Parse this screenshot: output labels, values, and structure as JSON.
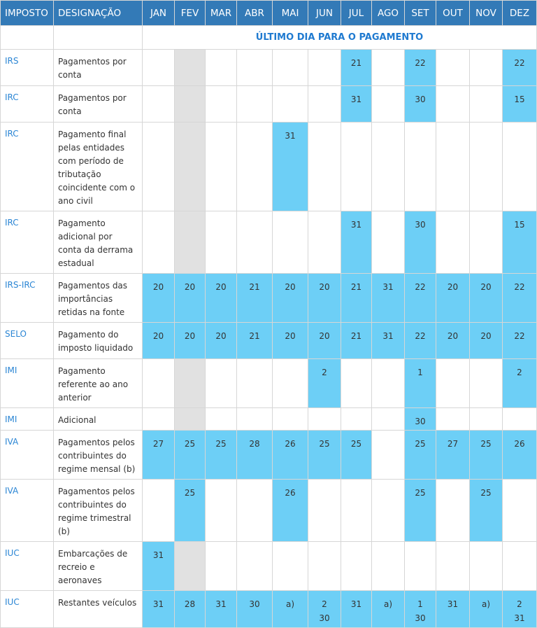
{
  "header": {
    "imposto": "IMPOSTO",
    "designacao": "DESIGNAÇÃO",
    "months": [
      "JAN",
      "FEV",
      "MAR",
      "ABR",
      "MAI",
      "JUN",
      "JUL",
      "AGO",
      "SET",
      "OUT",
      "NOV",
      "DEZ"
    ]
  },
  "subheader": "ÚLTIMO DIA PARA O PAGAMENTO",
  "colors": {
    "header_bg": "#337ab7",
    "highlight": "#6dcff6",
    "not_applicable": "#e1e1e1",
    "tax_link": "#2a85d4"
  },
  "rows": [
    {
      "imposto": "IRS",
      "designacao": "Pagamentos por conta",
      "gray": [
        1
      ],
      "cells": [
        "",
        "",
        "",
        "",
        "",
        "",
        "21",
        "",
        "22",
        "",
        "",
        "22"
      ]
    },
    {
      "imposto": "IRC",
      "designacao": "Pagamentos por conta",
      "gray": [
        1
      ],
      "cells": [
        "",
        "",
        "",
        "",
        "",
        "",
        "31",
        "",
        "30",
        "",
        "",
        "15"
      ]
    },
    {
      "imposto": "IRC",
      "designacao": "Pagamento final pelas entidades com período de tributação coincidente com o ano civil",
      "gray": [
        1
      ],
      "cells": [
        "",
        "",
        "",
        "",
        "31",
        "",
        "",
        "",
        "",
        "",
        "",
        ""
      ]
    },
    {
      "imposto": "IRC",
      "designacao": "Pagamento adicional por conta da derrama estadual",
      "gray": [
        1
      ],
      "cells": [
        "",
        "",
        "",
        "",
        "",
        "",
        "31",
        "",
        "30",
        "",
        "",
        "15"
      ]
    },
    {
      "imposto": "IRS-IRC",
      "designacao": "Pagamentos das importâncias retidas na fonte",
      "gray": [],
      "cells": [
        "20",
        "20",
        "20",
        "21",
        "20",
        "20",
        "21",
        "31",
        "22",
        "20",
        "20",
        "22"
      ]
    },
    {
      "imposto": "SELO",
      "designacao": "Pagamento do imposto liquidado",
      "gray": [],
      "cells": [
        "20",
        "20",
        "20",
        "21",
        "20",
        "20",
        "21",
        "31",
        "22",
        "20",
        "20",
        "22"
      ]
    },
    {
      "imposto": "IMI",
      "designacao": "Pagamento referente ao ano anterior",
      "gray": [
        1
      ],
      "cells": [
        "",
        "",
        "",
        "",
        "",
        "2",
        "",
        "",
        "1",
        "",
        "",
        "2"
      ]
    },
    {
      "imposto": "IMI",
      "designacao": "Adicional",
      "gray": [
        1
      ],
      "cells": [
        "",
        "",
        "",
        "",
        "",
        "",
        "",
        "",
        "30",
        "",
        "",
        ""
      ]
    },
    {
      "imposto": "IVA",
      "designacao": "Pagamentos pelos contribuintes do regime mensal (b)",
      "gray": [],
      "cells": [
        "27",
        "25",
        "25",
        "28",
        "26",
        "25",
        "25",
        "",
        "25",
        "27",
        "25",
        "26"
      ]
    },
    {
      "imposto": "IVA",
      "designacao": "Pagamentos pelos contribuintes do regime trimestral (b)",
      "gray": [],
      "cells": [
        "",
        "25",
        "",
        "",
        "26",
        "",
        "",
        "",
        "25",
        "",
        "25",
        ""
      ]
    },
    {
      "imposto": "IUC",
      "designacao": "Embarcações de recreio e aeronaves",
      "gray": [
        1
      ],
      "cells": [
        "31",
        "",
        "",
        "",
        "",
        "",
        "",
        "",
        "",
        "",
        "",
        ""
      ]
    },
    {
      "imposto": "IUC",
      "designacao": "Restantes veículos",
      "gray": [],
      "cells": [
        "31",
        "28",
        "31",
        "30",
        "a)",
        "2\n30",
        "31",
        "a)",
        "1\n30",
        "31",
        "a)",
        "2\n31"
      ]
    }
  ]
}
